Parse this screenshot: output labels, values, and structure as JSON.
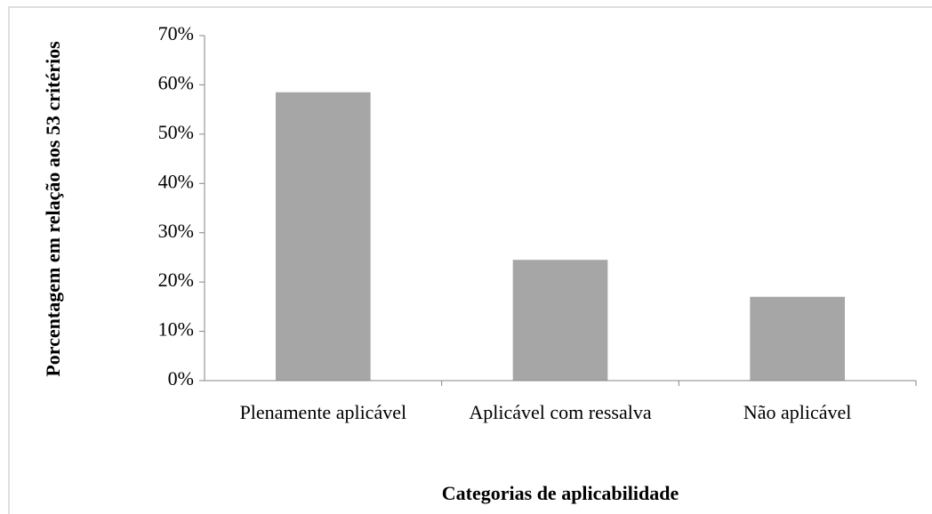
{
  "chart_data": {
    "type": "bar",
    "x_label": "Categorias de aplicabilidade",
    "y_label": "Porcentagem em relação aos 53 critérios",
    "categories": [
      "Plenamente aplicável",
      "Aplicável com ressalva",
      "Não aplicável"
    ],
    "values": [
      58.5,
      24.5,
      17
    ],
    "color": "#a6a6a6",
    "ylim": [
      0,
      70
    ],
    "yticks": [
      {
        "value": 0,
        "label": "0%"
      },
      {
        "value": 10,
        "label": "10%"
      },
      {
        "value": 20,
        "label": "20%"
      },
      {
        "value": 30,
        "label": "30%"
      },
      {
        "value": 40,
        "label": "40%"
      },
      {
        "value": 50,
        "label": "50%"
      },
      {
        "value": 60,
        "label": "60%"
      },
      {
        "value": 70,
        "label": "70%"
      }
    ],
    "grid": false
  }
}
